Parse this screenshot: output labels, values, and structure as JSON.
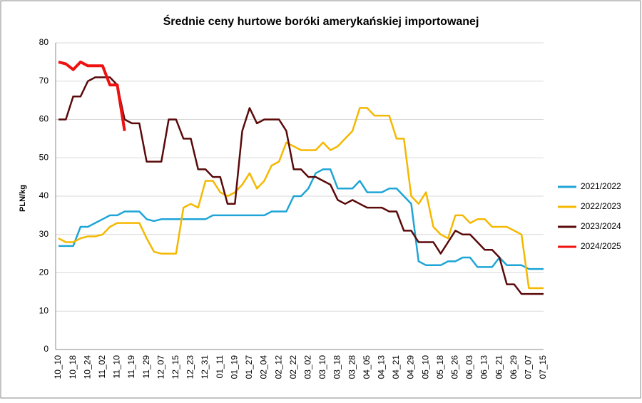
{
  "chart_data": {
    "type": "line",
    "title": "Średnie ceny hurtowe boróki amerykańskiej importowanej",
    "y_label": "PLN/kg",
    "categories": [
      "10_10",
      null,
      "10_18",
      null,
      "10_24",
      null,
      "11_02",
      null,
      "11_10",
      null,
      "11_19",
      null,
      "11_29",
      null,
      "12_07",
      null,
      "12_15",
      null,
      "12_23",
      null,
      "12_31",
      null,
      "01_11",
      null,
      "01_19",
      null,
      "01_27",
      null,
      "02_04",
      null,
      "02_12",
      null,
      "02_22",
      null,
      "03_02",
      null,
      "03_10",
      null,
      "03_18",
      null,
      "03_28",
      null,
      "04_05",
      null,
      "04_13",
      null,
      "04_21",
      null,
      "04_29",
      null,
      "05_10",
      null,
      "05_18",
      null,
      "05_26",
      null,
      "06_03",
      null,
      "06_13",
      null,
      "06_21",
      null,
      "06_29",
      null,
      "07_07",
      null,
      "07_15"
    ],
    "series": [
      {
        "name": "2021/2022",
        "color": "#1ea5d6",
        "values": [
          27,
          27,
          27,
          32,
          32,
          33,
          34,
          35,
          35,
          36,
          36,
          36,
          34,
          33.5,
          34,
          34,
          34,
          34,
          34,
          34,
          34,
          35,
          35,
          35,
          35,
          35,
          35,
          35,
          35,
          36,
          36,
          36,
          40,
          40,
          42,
          46,
          47,
          47,
          42,
          42,
          42,
          44,
          41,
          41,
          41,
          42,
          42,
          40,
          38,
          23,
          22,
          22,
          22,
          23,
          23,
          24,
          24,
          21.5,
          21.5,
          21.5,
          24,
          22,
          22,
          22,
          21,
          21,
          21
        ]
      },
      {
        "name": "2022/2023",
        "color": "#f5b800",
        "values": [
          29,
          28,
          28,
          29,
          29.5,
          29.5,
          30,
          32,
          33,
          33,
          33,
          33,
          29,
          25.5,
          25,
          25,
          25,
          37,
          38,
          37,
          44,
          44,
          41,
          40,
          41,
          43,
          46,
          42,
          44,
          48,
          49,
          54,
          53,
          52,
          52,
          52,
          54,
          52,
          53,
          55,
          57,
          63,
          63,
          61,
          61,
          61,
          55,
          55,
          40,
          38,
          41,
          32,
          30,
          29,
          35,
          35,
          33,
          34,
          34,
          32,
          32,
          32,
          31,
          30,
          16,
          16,
          16
        ]
      },
      {
        "name": "2023/2024",
        "color": "#5a0a0a",
        "values": [
          60,
          60,
          66,
          66,
          70,
          71,
          71,
          71,
          69,
          60,
          59,
          59,
          49,
          49,
          49,
          60,
          60,
          55,
          55,
          47,
          47,
          45,
          45,
          38,
          38,
          57,
          63,
          59,
          60,
          60,
          60,
          57,
          47,
          47,
          45,
          45,
          44,
          43,
          39,
          38,
          39,
          38,
          37,
          37,
          37,
          36,
          36,
          31,
          31,
          28,
          28,
          28,
          25,
          28,
          31,
          30,
          30,
          28,
          26,
          26,
          24,
          17,
          17,
          14.5,
          14.5,
          14.5,
          14.5
        ]
      },
      {
        "name": "2024/2025",
        "color": "#ee1111",
        "values": [
          75,
          74.5,
          73,
          75,
          74,
          74,
          74,
          69,
          69,
          57,
          null,
          null,
          null,
          null,
          null,
          null,
          null,
          null,
          null,
          null,
          null,
          null,
          null,
          null,
          null,
          null,
          null,
          null,
          null,
          null,
          null,
          null,
          null,
          null,
          null,
          null,
          null,
          null,
          null,
          null,
          null,
          null,
          null,
          null,
          null,
          null,
          null,
          null,
          null,
          null,
          null,
          null,
          null,
          null,
          null,
          null,
          null,
          null,
          null,
          null,
          null,
          null,
          null,
          null,
          null,
          null,
          null
        ]
      }
    ],
    "ylim": [
      0,
      80
    ],
    "yticks": [
      0,
      10,
      20,
      30,
      40,
      50,
      60,
      70,
      80
    ],
    "grid": true,
    "legend": "right"
  }
}
